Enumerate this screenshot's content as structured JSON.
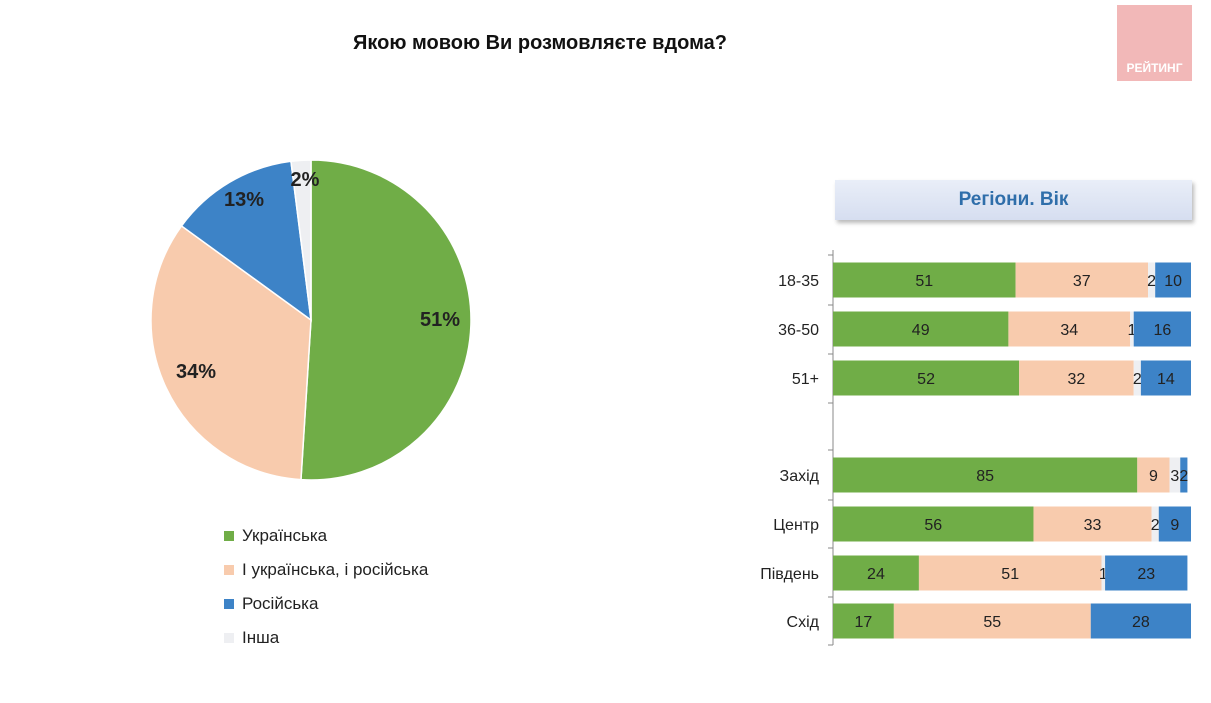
{
  "title": "Якою мовою Ви розмовляєте вдома?",
  "logo_text": "РЕЙТИНГ",
  "panel_title": "Регіони. Вік",
  "colors": {
    "ukr": "#70ad47",
    "both": "#f8cbad",
    "rus": "#3d83c7",
    "other": "#eeeff2"
  },
  "chart_data": [
    {
      "type": "pie",
      "title": "Якою мовою Ви розмовляєте вдома?",
      "slices": [
        {
          "name": "Українська",
          "value": 51,
          "label": "51%"
        },
        {
          "name": "І українська, і російська",
          "value": 34,
          "label": "34%"
        },
        {
          "name": "Російська",
          "value": 13,
          "label": "13%"
        },
        {
          "name": "Інша",
          "value": 2,
          "label": "2%"
        }
      ],
      "legend_position": "bottom"
    },
    {
      "type": "bar",
      "orientation": "horizontal-stacked",
      "title": "Регіони. Вік",
      "categories": [
        "18-35",
        "36-50",
        "51+",
        "Захід",
        "Центр",
        "Південь",
        "Схід"
      ],
      "series": [
        {
          "name": "Українська",
          "values": [
            51,
            49,
            52,
            85,
            56,
            24,
            17
          ]
        },
        {
          "name": "І українська, і російська",
          "values": [
            37,
            34,
            32,
            9,
            33,
            51,
            55
          ]
        },
        {
          "name": "Інша",
          "values": [
            2,
            1,
            2,
            3,
            2,
            1,
            0
          ]
        },
        {
          "name": "Російська",
          "values": [
            10,
            16,
            14,
            2,
            9,
            23,
            28
          ]
        }
      ],
      "xlim": [
        0,
        100
      ]
    }
  ]
}
